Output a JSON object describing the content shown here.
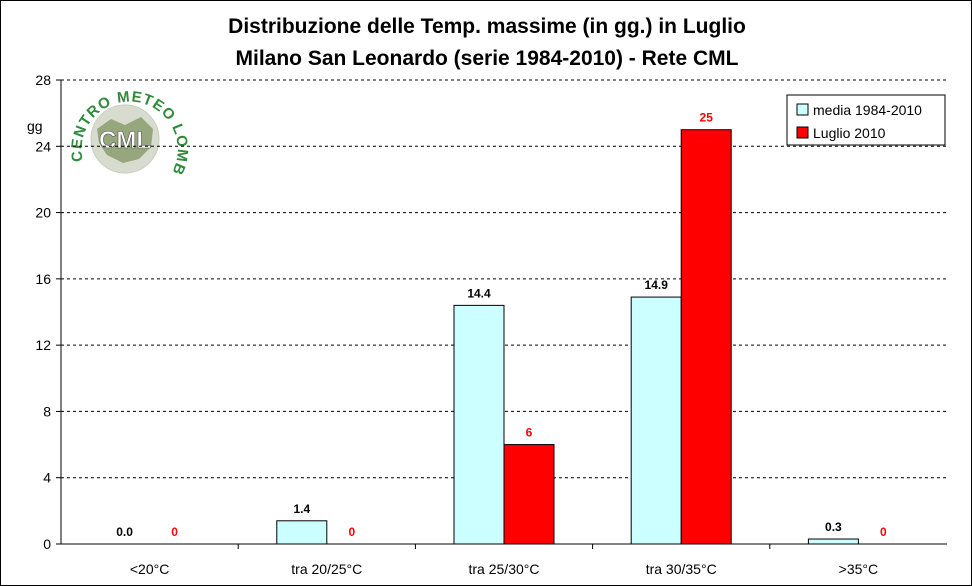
{
  "chart_data": {
    "type": "bar",
    "title": "Distribuzione delle Temp. massime (in gg.) in Luglio",
    "subtitle": "Milano San Leonardo (serie 1984-2010) - Rete CML",
    "ylabel": "gg",
    "xlabel": "",
    "ylim": [
      0,
      28
    ],
    "yticks": [
      0,
      4,
      8,
      12,
      16,
      20,
      24,
      28
    ],
    "grid": "horizontal",
    "legend_position": "top-right",
    "categories": [
      "<20°C",
      "tra 20/25°C",
      "tra 25/30°C",
      "tra 30/35°C",
      ">35°C"
    ],
    "series": [
      {
        "name": "media 1984-2010",
        "values": [
          0.0,
          1.4,
          14.4,
          14.9,
          0.3
        ],
        "labels": [
          "0.0",
          "1.4",
          "14.4",
          "14.9",
          "0.3"
        ],
        "color": "#ccffff",
        "label_color": "#000000"
      },
      {
        "name": "Luglio 2010",
        "values": [
          0,
          0,
          6,
          25,
          0
        ],
        "labels": [
          "0",
          "0",
          "6",
          "25",
          "0"
        ],
        "color": "#ff0000",
        "label_color": "#ff0000"
      }
    ]
  },
  "logo": {
    "text_top": "CENTRO METEO LOMBARDO",
    "center": "CML",
    "color": "#2e8b3a"
  }
}
